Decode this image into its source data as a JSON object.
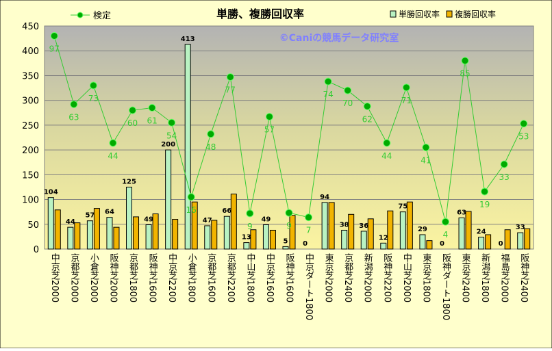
{
  "chart_data": {
    "type": "bar",
    "title": "単勝、複勝回収率",
    "watermark": "©Caniの競馬データ研究室",
    "categories": [
      "中京芝2000",
      "京都芝2000",
      "小倉芝2000",
      "阪神芝2000",
      "京都芝1800",
      "阪神芝1600",
      "中京芝2200",
      "小倉芝1800",
      "京都芝1600",
      "京都芝2200",
      "中山芝1800",
      "中京芝1600",
      "阪神芝1600",
      "中京ダート1800",
      "東京芝2000",
      "京都芝2400",
      "新潟芝2000",
      "阪神芝2200",
      "中山芝2000",
      "東京芝1800",
      "阪神ダート1800",
      "東京芝2400",
      "新潟芝1800",
      "福島芝2000",
      "阪神芝2400"
    ],
    "series": [
      {
        "name": "単勝回収率",
        "kind": "bar",
        "color": "#b9f2c2",
        "values": [
          104,
          44,
          57,
          64,
          125,
          49,
          200,
          413,
          47,
          66,
          13,
          49,
          5,
          0,
          94,
          38,
          36,
          12,
          75,
          29,
          0,
          63,
          24,
          0,
          33
        ],
        "data_labels": [
          "104",
          "44",
          "57",
          "64",
          "125",
          "49",
          "200",
          "413",
          "47",
          "66",
          "13",
          "49",
          "5",
          "0",
          "94",
          "38",
          "36",
          "12",
          "75",
          "29",
          "0",
          "63",
          "24",
          "0",
          "33"
        ]
      },
      {
        "name": "複勝回収率",
        "kind": "bar",
        "color": "#f2b400",
        "values": [
          79,
          53,
          82,
          44,
          65,
          71,
          60,
          95,
          58,
          111,
          39,
          38,
          68,
          0,
          94,
          70,
          61,
          77,
          95,
          17,
          0,
          76,
          29,
          39,
          41
        ]
      },
      {
        "name": "検定",
        "kind": "line",
        "color": "#33cc33",
        "values": [
          430,
          292,
          330,
          214,
          280,
          285,
          255,
          105,
          232,
          347,
          72,
          267,
          73,
          64,
          338,
          320,
          288,
          214,
          326,
          205,
          55,
          380,
          116,
          171,
          253
        ],
        "data_labels": [
          "97",
          "63",
          "73",
          "44",
          "60",
          "61",
          "54",
          "16",
          "48",
          "77",
          "9",
          "57",
          "9",
          "7",
          "74",
          "70",
          "62",
          "44",
          "71",
          "41",
          "4",
          "85",
          "19",
          "33",
          "53"
        ]
      }
    ],
    "yticks": [
      "0",
      "50",
      "100",
      "150",
      "200",
      "250",
      "300",
      "350",
      "400",
      "450"
    ],
    "ylim": [
      0,
      450
    ],
    "grid": true,
    "legend": "top"
  }
}
